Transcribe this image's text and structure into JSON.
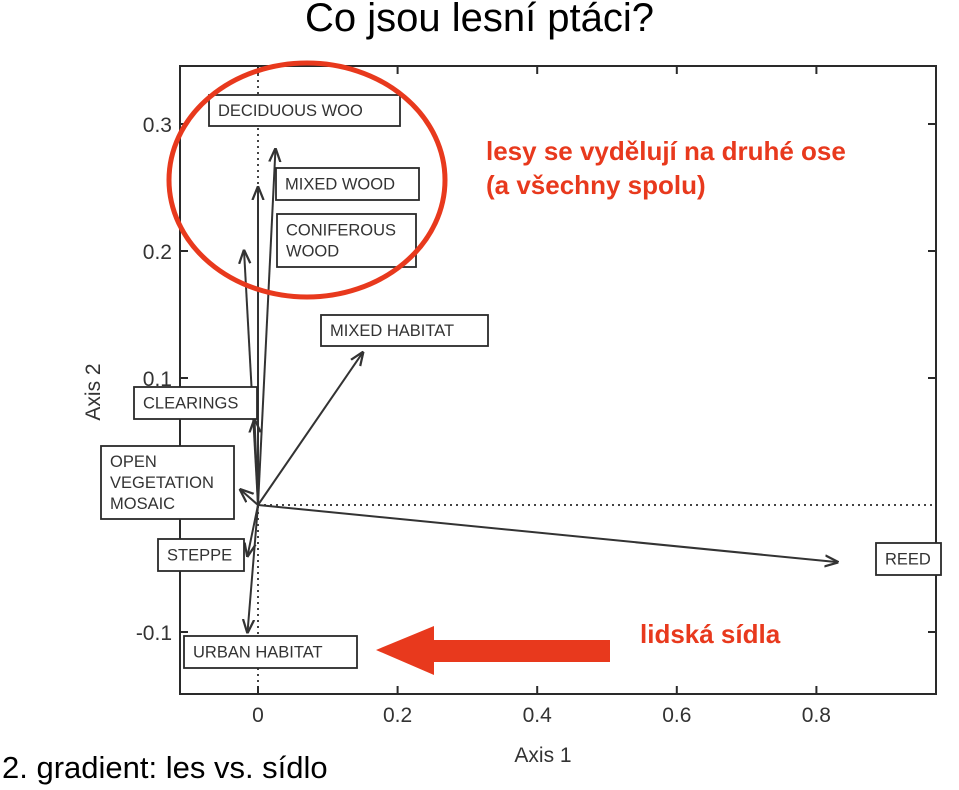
{
  "slide": {
    "title": "Co jsou lesní ptáci?",
    "footer": "2. gradient: les vs. sídlo"
  },
  "annotations": {
    "forest_note_line1": "lesy se vydělují na druhé ose",
    "forest_note_line2": "(a všechny spolu)",
    "settlement_note": "lidská sídla",
    "accent_color": "#e8391d"
  },
  "chart_data": {
    "type": "scatter",
    "subtype": "ordination biplot (arrows from origin)",
    "title": "",
    "xlabel": "Axis 1",
    "ylabel": "Axis 2",
    "xlim": [
      -0.23,
      1.0
    ],
    "ylim": [
      -0.16,
      0.34
    ],
    "xticks": [
      0,
      0.2,
      0.4,
      0.6,
      0.8
    ],
    "xtick_labels": [
      "0",
      "0.2",
      "0.4",
      "0.6",
      "0.8"
    ],
    "yticks": [
      -0.1,
      0.1,
      0.2,
      0.3
    ],
    "ytick_labels": [
      "-0.1",
      "0.1",
      "0.2",
      "0.3"
    ],
    "zero_lines": true,
    "grid": false,
    "series": [
      {
        "points": [
          {
            "label": "DECIDUOUS WOO",
            "x": 0.025,
            "y": 0.28
          },
          {
            "label": "MIXED WOOD",
            "x": 0.0,
            "y": 0.25
          },
          {
            "label": "CONIFEROUS WOOD",
            "x": -0.02,
            "y": 0.2
          },
          {
            "label": "MIXED HABITAT",
            "x": 0.15,
            "y": 0.12
          },
          {
            "label": "CLEARINGS",
            "x": -0.005,
            "y": 0.067
          },
          {
            "label": "OPEN VEGETATION MOSAIC",
            "x": -0.025,
            "y": 0.012
          },
          {
            "label": "STEPPE",
            "x": -0.015,
            "y": -0.04
          },
          {
            "label": "URBAN HABITAT",
            "x": -0.015,
            "y": -0.1
          },
          {
            "label": "REED",
            "x": 0.83,
            "y": -0.045
          }
        ]
      }
    ]
  }
}
